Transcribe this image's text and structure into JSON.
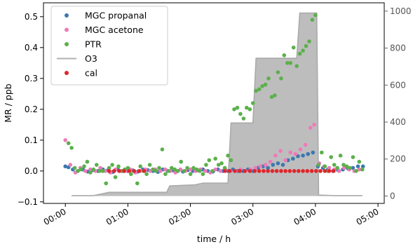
{
  "chart_data": {
    "type": "scatter",
    "xlabel": "time / h",
    "ylabel": "MR / ppb",
    "x_unit": "hours",
    "x_ticks": [
      {
        "value": 0,
        "label": "00:00"
      },
      {
        "value": 1,
        "label": "01:00"
      },
      {
        "value": 2,
        "label": "02:00"
      },
      {
        "value": 3,
        "label": "03:00"
      },
      {
        "value": 4,
        "label": "04:00"
      },
      {
        "value": 5,
        "label": "05:00"
      }
    ],
    "xlim": [
      -0.35,
      5.1
    ],
    "ylim": [
      -0.105,
      0.545
    ],
    "y_ticks": [
      -0.1,
      0.0,
      0.1,
      0.2,
      0.3,
      0.4,
      0.5
    ],
    "y_tick_labels": [
      "−0.1",
      "0.0",
      "0.1",
      "0.2",
      "0.3",
      "0.4",
      "0.5"
    ],
    "ylim_right": [
      -40,
      1045
    ],
    "y_ticks_right": [
      0,
      200,
      400,
      600,
      800,
      1000
    ],
    "y_tick_labels_right": [
      "0",
      "200",
      "400",
      "600",
      "800",
      "1000"
    ],
    "grid": false,
    "legend": {
      "placement": "top-left",
      "entries": [
        {
          "label": "MGC propanal",
          "marker": "dot",
          "color": "#3a78b0"
        },
        {
          "label": "MGC acetone",
          "marker": "dot",
          "color": "#ee7ab8"
        },
        {
          "label": "PTR",
          "marker": "dot",
          "color": "#5bb04a"
        },
        {
          "label": "O3",
          "marker": "line",
          "color": "#b0b0b0"
        },
        {
          "label": "cal",
          "marker": "dot",
          "color": "#e0252a"
        }
      ]
    },
    "o3": {
      "name": "O3",
      "axis": "right",
      "line_color": "#aaaaaa",
      "fill_color": "#bdbdbd",
      "x": [
        0.1,
        0.3,
        0.45,
        0.7,
        1.62,
        1.67,
        2.07,
        2.2,
        2.6,
        2.65,
        3.0,
        3.05,
        3.35,
        3.4,
        3.7,
        3.75,
        3.98,
        4.02,
        4.05,
        4.3,
        4.55,
        4.75
      ],
      "y": [
        2,
        2,
        2,
        20,
        20,
        55,
        60,
        70,
        70,
        395,
        395,
        745,
        745,
        745,
        745,
        990,
        990,
        990,
        5,
        2,
        2,
        2
      ]
    },
    "series": [
      {
        "name": "MGC propanal",
        "color": "#3a78b0",
        "x": [
          0.0,
          0.05,
          0.12,
          0.2,
          0.28,
          0.36,
          0.44,
          0.52,
          0.6,
          0.68,
          0.76,
          0.84,
          0.92,
          1.0,
          1.08,
          1.16,
          1.24,
          1.32,
          1.4,
          1.48,
          1.56,
          1.64,
          1.72,
          1.8,
          1.88,
          1.96,
          2.04,
          2.12,
          2.2,
          2.28,
          2.36,
          2.44,
          2.52,
          2.6,
          2.68,
          2.76,
          2.84,
          2.92,
          3.0,
          3.08,
          3.16,
          3.24,
          3.32,
          3.4,
          3.48,
          3.56,
          3.64,
          3.72,
          3.8,
          3.88,
          3.96,
          4.04,
          4.12,
          4.2,
          4.28,
          4.36,
          4.44,
          4.52,
          4.6,
          4.68,
          4.76
        ],
        "y": [
          0.015,
          0.012,
          0.005,
          0.0,
          0.005,
          -0.002,
          0.003,
          0.0,
          0.005,
          0.002,
          -0.003,
          0.005,
          0.0,
          0.0,
          0.002,
          -0.002,
          0.005,
          0.003,
          0.0,
          -0.003,
          0.005,
          0.0,
          0.002,
          0.0,
          -0.002,
          0.003,
          0.0,
          0.002,
          0.005,
          0.0,
          -0.002,
          0.005,
          0.0,
          0.0,
          0.005,
          0.0,
          0.0,
          0.005,
          0.0,
          0.01,
          0.015,
          0.01,
          0.02,
          0.025,
          0.02,
          0.035,
          0.04,
          0.048,
          0.05,
          0.055,
          0.06,
          0.015,
          0.01,
          0.005,
          0.0,
          0.003,
          0.005,
          0.008,
          0.01,
          0.015,
          0.015
        ]
      },
      {
        "name": "MGC acetone",
        "color": "#ee7ab8",
        "x": [
          0.0,
          0.08,
          0.16,
          0.24,
          0.32,
          0.4,
          0.48,
          0.56,
          0.64,
          0.72,
          0.8,
          0.88,
          0.96,
          1.04,
          1.12,
          1.2,
          1.28,
          1.36,
          1.44,
          1.52,
          1.6,
          1.68,
          1.76,
          1.84,
          1.92,
          2.0,
          2.08,
          2.16,
          2.24,
          2.32,
          2.4,
          2.48,
          2.56,
          2.64,
          2.72,
          2.8,
          2.88,
          2.96,
          3.04,
          3.12,
          3.2,
          3.28,
          3.36,
          3.44,
          3.52,
          3.6,
          3.68,
          3.76,
          3.84,
          3.92,
          3.98,
          4.06,
          4.14,
          4.22,
          4.3,
          4.38,
          4.46,
          4.54,
          4.62,
          4.7
        ],
        "y": [
          0.1,
          0.02,
          -0.005,
          0.01,
          0.0,
          0.005,
          0.0,
          0.01,
          0.0,
          -0.005,
          0.005,
          0.0,
          0.0,
          0.005,
          -0.005,
          0.0,
          0.005,
          0.0,
          0.005,
          0.0,
          0.005,
          0.0,
          -0.005,
          0.005,
          0.0,
          0.005,
          0.0,
          0.005,
          0.0,
          -0.005,
          0.005,
          0.0,
          0.005,
          0.0,
          0.0,
          0.005,
          0.0,
          0.005,
          0.01,
          0.015,
          0.02,
          0.03,
          0.05,
          0.065,
          0.035,
          0.06,
          0.055,
          0.07,
          0.085,
          0.14,
          0.15,
          0.025,
          0.015,
          0.01,
          0.005,
          0.0,
          0.01,
          0.005,
          0.0,
          0.005
        ]
      },
      {
        "name": "PTR",
        "color": "#5bb04a",
        "x": [
          0.05,
          0.1,
          0.15,
          0.2,
          0.25,
          0.3,
          0.35,
          0.4,
          0.45,
          0.5,
          0.55,
          0.6,
          0.65,
          0.7,
          0.75,
          0.8,
          0.85,
          0.9,
          0.95,
          1.0,
          1.05,
          1.1,
          1.15,
          1.2,
          1.25,
          1.3,
          1.35,
          1.4,
          1.45,
          1.5,
          1.55,
          1.6,
          1.65,
          1.7,
          1.75,
          1.8,
          1.85,
          1.9,
          1.95,
          2.0,
          2.05,
          2.1,
          2.15,
          2.2,
          2.25,
          2.3,
          2.35,
          2.4,
          2.45,
          2.5,
          2.55,
          2.6,
          2.65,
          2.7,
          2.75,
          2.8,
          2.85,
          2.9,
          2.95,
          3.0,
          3.05,
          3.1,
          3.15,
          3.2,
          3.25,
          3.3,
          3.35,
          3.4,
          3.45,
          3.5,
          3.55,
          3.6,
          3.65,
          3.7,
          3.75,
          3.8,
          3.85,
          3.9,
          3.95,
          4.0,
          4.05,
          4.1,
          4.15,
          4.2,
          4.25,
          4.3,
          4.35,
          4.4,
          4.45,
          4.5,
          4.55,
          4.6,
          4.65,
          4.7,
          4.75
        ],
        "y": [
          0.09,
          0.075,
          0.01,
          0.0,
          0.005,
          0.015,
          0.03,
          -0.005,
          0.005,
          0.02,
          0.0,
          0.0,
          -0.04,
          0.01,
          0.02,
          -0.02,
          0.015,
          0.0,
          0.005,
          0.01,
          -0.01,
          0.0,
          -0.04,
          0.015,
          0.0,
          -0.01,
          0.02,
          0.005,
          0.0,
          0.01,
          0.07,
          -0.01,
          0.0,
          0.01,
          0.005,
          0.0,
          0.03,
          0.0,
          0.01,
          -0.01,
          0.01,
          0.005,
          0.0,
          -0.01,
          0.02,
          0.035,
          0.0,
          0.04,
          0.02,
          0.025,
          0.01,
          0.05,
          0.035,
          0.2,
          0.205,
          0.185,
          0.17,
          0.205,
          0.2,
          0.22,
          0.26,
          0.265,
          0.275,
          0.28,
          0.3,
          0.24,
          0.245,
          0.32,
          0.3,
          0.375,
          0.35,
          0.35,
          0.4,
          0.34,
          0.38,
          0.39,
          0.405,
          0.42,
          0.49,
          0.505,
          0.02,
          0.06,
          0.015,
          0.0,
          0.045,
          0.02,
          0.01,
          0.05,
          0.02,
          0.015,
          0.01,
          0.045,
          0.0,
          0.03,
          0.005
        ]
      },
      {
        "name": "cal",
        "color": "#e0252a",
        "x": [
          0.7,
          0.78,
          0.86,
          0.94,
          1.02,
          1.1,
          1.18,
          1.26,
          2.55,
          2.63,
          2.71,
          2.79,
          2.87,
          2.95,
          3.03,
          3.1,
          3.17,
          3.24,
          3.31,
          3.38,
          3.45,
          3.52,
          3.59,
          3.66,
          3.73,
          3.8,
          3.87,
          3.94,
          4.01,
          4.08,
          4.15,
          4.22,
          4.29
        ],
        "y": [
          0.0,
          0.0,
          0.0,
          0.0,
          0.0,
          0.0,
          0.0,
          0.0,
          0.0,
          0.0,
          0.0,
          0.0,
          0.0,
          0.0,
          0.0,
          0.0,
          0.0,
          0.0,
          0.0,
          0.0,
          0.0,
          0.0,
          0.0,
          0.0,
          0.0,
          0.0,
          0.0,
          0.0,
          0.0,
          0.0,
          0.0,
          0.0,
          0.0
        ]
      }
    ]
  }
}
